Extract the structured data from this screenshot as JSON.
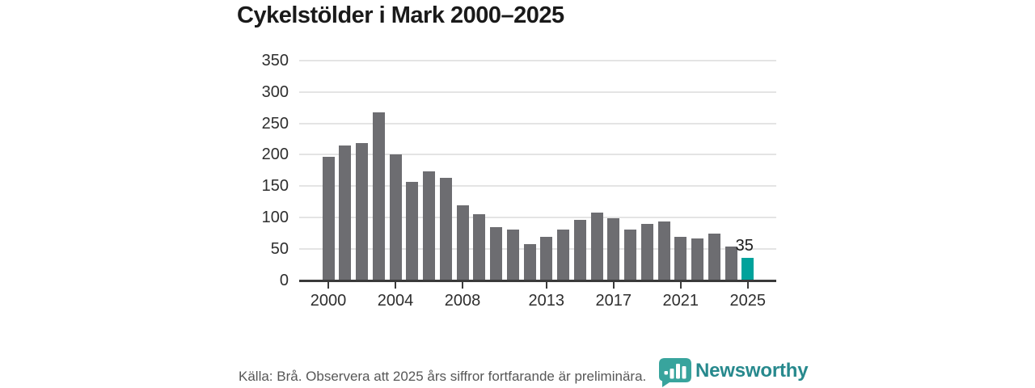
{
  "title": "Cykelstölder i Mark 2000–2025",
  "chart_data": {
    "type": "bar",
    "title": "Cykelstölder i Mark 2000–2025",
    "series_name": "Cykelstölder",
    "x": [
      2000,
      2001,
      2002,
      2003,
      2004,
      2005,
      2006,
      2007,
      2008,
      2009,
      2010,
      2011,
      2012,
      2013,
      2014,
      2015,
      2016,
      2017,
      2018,
      2019,
      2020,
      2021,
      2022,
      2023,
      2024,
      2025
    ],
    "values": [
      197,
      215,
      218,
      268,
      201,
      157,
      173,
      163,
      119,
      105,
      84,
      80,
      57,
      69,
      80,
      96,
      108,
      98,
      80,
      89,
      94,
      69,
      66,
      74,
      53,
      35
    ],
    "highlight_x": 2025,
    "bar_label": {
      "x": 2025,
      "text": "35"
    },
    "ylim": [
      0,
      350
    ],
    "y_ticks": [
      0,
      50,
      100,
      150,
      200,
      250,
      300,
      350
    ],
    "x_tick_labels": [
      "2000",
      "2004",
      "2008",
      "2013",
      "2017",
      "2021",
      "2025"
    ],
    "grid": "horizontal",
    "legend": "none"
  },
  "footer": {
    "source_text": "Källa: Brå. Observera att 2025 års siffror fortfarande är preliminära.",
    "logo_text": "Newsworthy",
    "logo_icon": "speech-bubble-bar-chart-icon"
  },
  "colors": {
    "bar_default": "#6d6d71",
    "bar_highlight": "#00a29b",
    "gridline": "#e4e4e4",
    "axis_line": "#3a3a3a",
    "title_text": "#1a1a1a",
    "tick_text": "#2e2e2e",
    "bar_label_text": "#1a1a1a",
    "source_text": "#575757",
    "logo_icon_fill": "#38a49d",
    "logo_text_color": "#27898d"
  }
}
